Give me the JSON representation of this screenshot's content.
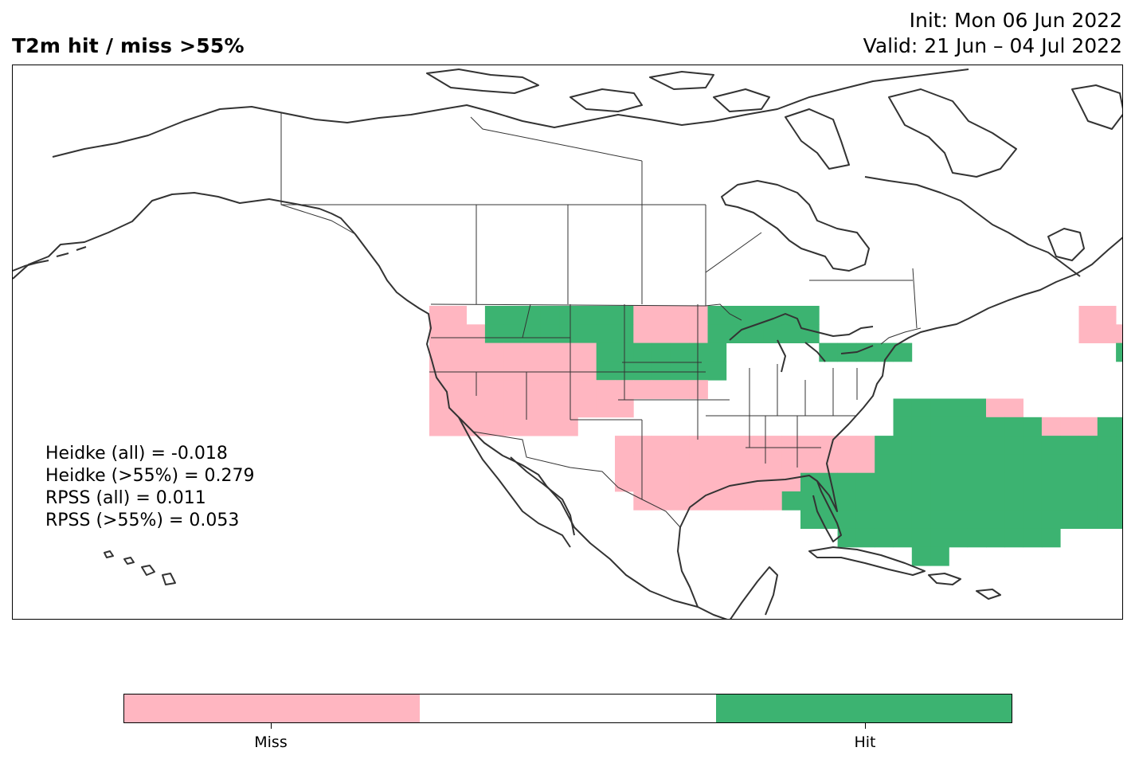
{
  "title": "T2m hit / miss  >55%",
  "init_label": "Init: Mon 06 Jun 2022",
  "valid_label": "Valid: 21 Jun – 04 Jul 2022",
  "stats": [
    "Heidke (all) = -0.018",
    "Heidke (>55%) = 0.279",
    "RPSS (all) = 0.011",
    "RPSS (>55%) = 0.053"
  ],
  "colors": {
    "miss": "#ffb6c1",
    "neutral": "#ffffff",
    "hit": "#3cb371",
    "coast": "#333333"
  },
  "colorbar": {
    "categories": [
      "miss",
      "neutral",
      "hit"
    ],
    "tick_labels": {
      "miss": "Miss",
      "hit": "Hit"
    }
  },
  "grid_legend": {
    "M": "miss",
    "H": "hit",
    ".": "no forecast signal"
  },
  "grid_rows": [
    "MM.HHHHHHHHMMMMHHHHHH..............MM..............................",
    "MMMHHHHHHHHMMMMHHHHHH..............MMM.............................",
    "MMMMMMMMMHHHHHHH.....HHHHH...........HHHHHHHHHHHHHHHMMM...........",
    "MMMMMMMMMHHHHHHH......................HHHHHHHHHHHHHHHMMM..........",
    "MMMMMMMMMMMMMMM.......................HHHHHHHHHHHHHHHHMM..........",
    "MMMMMMMMMMM..............HHHHHMM......HHHHHHHHHHHHHHHHH...........",
    "MMMMMMMM.................HHHHHHHHMMMHHHHHHHHHHHHHHHHHHH...........",
    "..........MMMMMMMMMMMMMMHHHHHHHHHHHHHHHHHHHHHHHHHHHHHHHH...........",
    "..........MMMMMMMMMMMMMMHHHHHHHHHHHHHHHHHHHHHHHHHHHHHHMM...........",
    "..........MMMMMMMMMMHHHHHHHHHHHHHHHHHHHHHHHHHHHHHHHHHMM............",
    "...........MMMMMMMMHHHHHHHHHHHHHHHHHHHHHHHHHHHHHHHH................",
    "....................HHHHHHHHHHHHHHHHHHHHHHHHHHH....................",
    "......................HHHHHHHHHHHH.................................",
    "..........................HH......................................."
  ]
}
